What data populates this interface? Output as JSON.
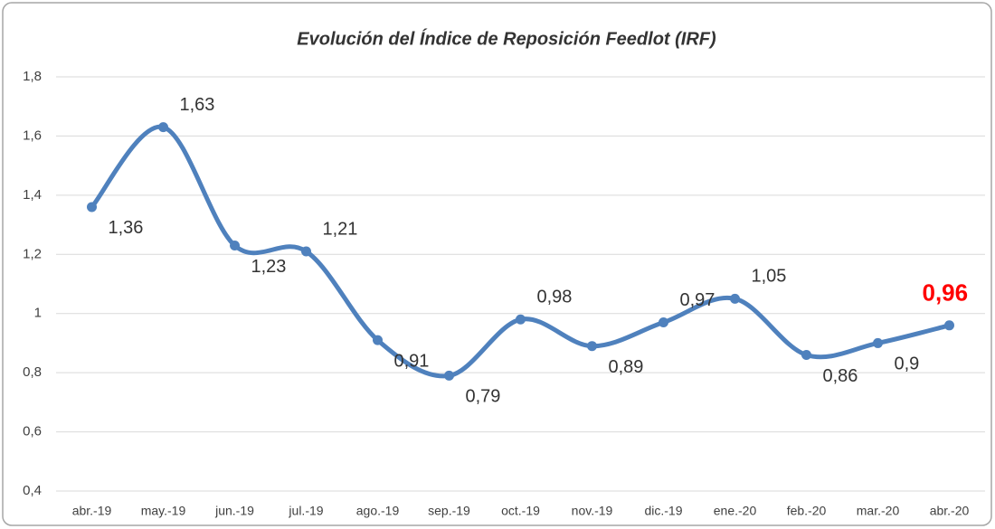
{
  "chart_data": {
    "type": "line",
    "title": "Evolución del Índice de Reposición Feedlot (IRF)",
    "categories": [
      "abr.-19",
      "may.-19",
      "jun.-19",
      "jul.-19",
      "ago.-19",
      "sep.-19",
      "oct.-19",
      "nov.-19",
      "dic.-19",
      "ene.-20",
      "feb.-20",
      "mar.-20",
      "abr.-20"
    ],
    "values": [
      1.36,
      1.63,
      1.23,
      1.21,
      0.91,
      0.79,
      0.98,
      0.89,
      0.97,
      1.05,
      0.86,
      0.9,
      0.96
    ],
    "value_labels": [
      "1,36",
      "1,63",
      "1,23",
      "1,21",
      "0,91",
      "0,79",
      "0,98",
      "0,89",
      "0,97",
      "1,05",
      "0,86",
      "0,9",
      "0,96"
    ],
    "color": "#4f81bd",
    "ylim": [
      0.4,
      1.8
    ],
    "yticks": [
      {
        "value": 0.4,
        "label": "0,4"
      },
      {
        "value": 0.6,
        "label": "0,6"
      },
      {
        "value": 0.8,
        "label": "0,8"
      },
      1,
      {
        "value": 1.2,
        "label": "1,2"
      },
      {
        "value": 1.4,
        "label": "1,4"
      },
      {
        "value": 1.6,
        "label": "1,6"
      },
      {
        "value": 1.8,
        "label": "1,8"
      }
    ],
    "grid": true
  }
}
